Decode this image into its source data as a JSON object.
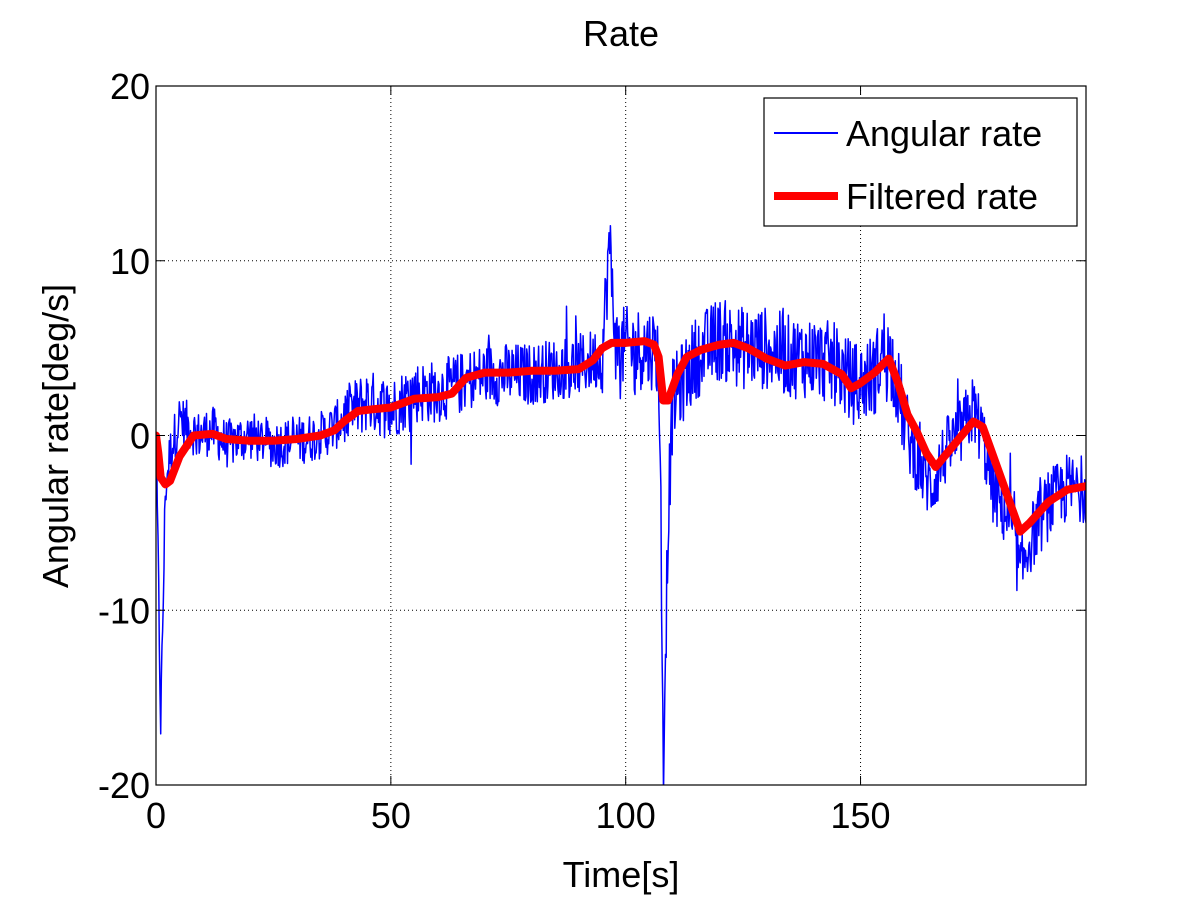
{
  "chart_data": {
    "type": "line",
    "title": "Rate",
    "xlabel": "Time[s]",
    "ylabel": "Angular rate[deg/s]",
    "xlim": [
      0,
      198
    ],
    "ylim": [
      -20,
      20
    ],
    "xticks": [
      0,
      50,
      100,
      150
    ],
    "yticks": [
      -20,
      -10,
      0,
      10,
      20
    ],
    "xtick_labels": [
      "0",
      "50",
      "100",
      "150"
    ],
    "ytick_labels": [
      "-20",
      "-10",
      "0",
      "10",
      "20"
    ],
    "grid": true,
    "legend_position": "top-right",
    "colors": {
      "angular": "#0000ff",
      "filtered": "#ff0000"
    },
    "series": [
      {
        "name": "Angular rate",
        "style": "noisy",
        "x": [
          0,
          0.5,
          1,
          1.5,
          2,
          3,
          4,
          5,
          7,
          9,
          12,
          15,
          20,
          25,
          30,
          35,
          38,
          40,
          45,
          50,
          55,
          60,
          65,
          70,
          75,
          80,
          85,
          90,
          95,
          96.5,
          98,
          100,
          104,
          106,
          107,
          107.5,
          108,
          109,
          110,
          112,
          115,
          120,
          125,
          130,
          135,
          140,
          145,
          148,
          150,
          153,
          155,
          157,
          160,
          163,
          165,
          168,
          171,
          174,
          176,
          178,
          180,
          182,
          184,
          186,
          190,
          194,
          198
        ],
        "y": [
          0,
          -8,
          -16.5,
          -10,
          -3,
          -1,
          0,
          1,
          0.5,
          0,
          0.3,
          -0.5,
          0,
          -0.5,
          -0.3,
          0,
          0.5,
          1,
          2,
          1.5,
          2.5,
          2.5,
          3,
          3.5,
          3.5,
          3.5,
          3.8,
          4,
          4.5,
          11,
          5,
          5,
          5,
          5,
          4.5,
          -5,
          -19,
          -5,
          2,
          3,
          4.5,
          5.5,
          5,
          5,
          4.5,
          4.5,
          4,
          3,
          3,
          3.5,
          5,
          4,
          0,
          -2,
          -3,
          -1,
          0,
          1.5,
          0,
          -3,
          -4,
          -5,
          -8,
          -6,
          -4,
          -3,
          -3
        ]
      },
      {
        "name": "Filtered rate",
        "style": "smooth",
        "x": [
          0,
          0.5,
          1,
          2,
          3,
          5,
          8,
          12,
          15,
          20,
          25,
          30,
          35,
          38,
          40,
          43,
          46,
          50,
          55,
          60,
          63,
          66,
          70,
          75,
          80,
          85,
          90,
          93,
          95,
          97,
          100,
          104,
          106,
          107,
          108,
          109,
          111,
          113,
          116,
          120,
          123,
          126,
          130,
          134,
          138,
          142,
          146,
          148,
          150,
          153,
          156,
          158,
          160,
          162,
          164,
          166,
          170,
          174,
          176,
          178,
          180,
          182,
          184,
          186,
          190,
          194,
          198
        ],
        "y": [
          0,
          -1,
          -2.4,
          -2.8,
          -2.6,
          -1.2,
          0,
          0.1,
          -0.2,
          -0.3,
          -0.3,
          -0.2,
          0,
          0.3,
          0.8,
          1.4,
          1.5,
          1.6,
          2.1,
          2.2,
          2.4,
          3.3,
          3.6,
          3.6,
          3.7,
          3.7,
          3.8,
          4.3,
          5,
          5.3,
          5.3,
          5.4,
          5.2,
          4.5,
          2,
          2,
          3.5,
          4.5,
          4.9,
          5.2,
          5.3,
          5,
          4.4,
          4,
          4.2,
          4.1,
          3.5,
          2.7,
          3,
          3.6,
          4.4,
          3,
          1.2,
          0.2,
          -1,
          -1.8,
          -0.5,
          0.8,
          0.5,
          -1,
          -2.5,
          -4,
          -5.5,
          -5,
          -3.8,
          -3.1,
          -2.9
        ]
      }
    ]
  }
}
